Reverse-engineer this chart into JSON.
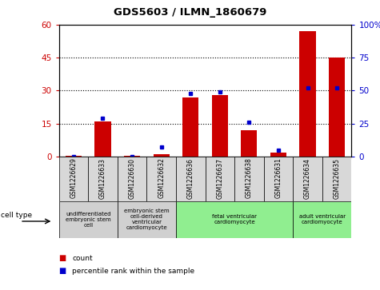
{
  "title": "GDS5603 / ILMN_1860679",
  "samples": [
    "GSM1226629",
    "GSM1226633",
    "GSM1226630",
    "GSM1226632",
    "GSM1226636",
    "GSM1226637",
    "GSM1226638",
    "GSM1226631",
    "GSM1226634",
    "GSM1226635"
  ],
  "counts": [
    0.3,
    16,
    0.3,
    1.2,
    27,
    28,
    12,
    2,
    57,
    45
  ],
  "percentiles": [
    0,
    29,
    0,
    7,
    48,
    49,
    26,
    5,
    52,
    52
  ],
  "ylim_left": [
    0,
    60
  ],
  "ylim_right": [
    0,
    100
  ],
  "yticks_left": [
    0,
    15,
    30,
    45,
    60
  ],
  "ytick_labels_left": [
    "0",
    "15",
    "30",
    "45",
    "60"
  ],
  "yticks_right": [
    0,
    25,
    50,
    75,
    100
  ],
  "ytick_labels_right": [
    "0",
    "25",
    "50",
    "75",
    "100%"
  ],
  "bar_color": "#cc0000",
  "dot_color": "#0000cc",
  "cell_types": [
    {
      "label": "undifferentiated\nembryonic stem\ncell",
      "start": 0,
      "end": 1,
      "color": "#d0d0d0"
    },
    {
      "label": "embryonic stem\ncell-derived\nventricular\ncardiomyocyte",
      "start": 2,
      "end": 3,
      "color": "#d0d0d0"
    },
    {
      "label": "fetal ventricular\ncardiomyocyte",
      "start": 4,
      "end": 7,
      "color": "#90ee90"
    },
    {
      "label": "adult ventricular\ncardiomyocyte",
      "start": 8,
      "end": 9,
      "color": "#90ee90"
    }
  ],
  "legend_count_label": "count",
  "legend_percentile_label": "percentile rank within the sample",
  "cell_type_label": "cell type"
}
